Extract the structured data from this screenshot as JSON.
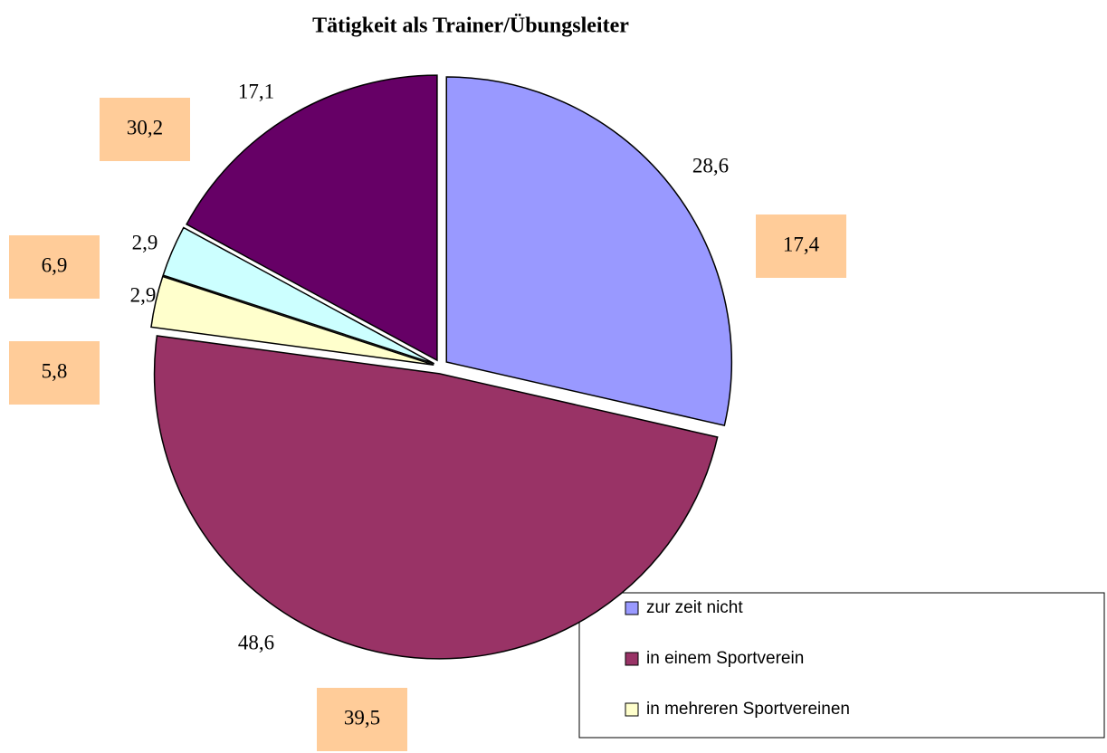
{
  "chart_data": {
    "type": "pie",
    "title": "Tätigkeit als Trainer/Übungsleiter",
    "categories": [
      "zur zeit nicht",
      "in einem Sportverein",
      "in mehreren Sportvereinen",
      null,
      null
    ],
    "series": [
      {
        "colors": [
          "#9999ff",
          "#993366",
          "#ffffcc",
          "#ccffff",
          "#660066"
        ],
        "values": [
          28.6,
          48.6,
          2.9,
          2.9,
          17.1
        ],
        "value_labels": [
          "28,6",
          "48,6",
          "2,9",
          "2,9",
          "17,1"
        ]
      },
      {
        "color": "#ffcc99",
        "values": [
          17.4,
          39.5,
          5.8,
          6.9,
          30.2
        ],
        "value_labels": [
          "17,4",
          "39,5",
          "5,8",
          "6,9",
          "30,2"
        ]
      }
    ]
  }
}
